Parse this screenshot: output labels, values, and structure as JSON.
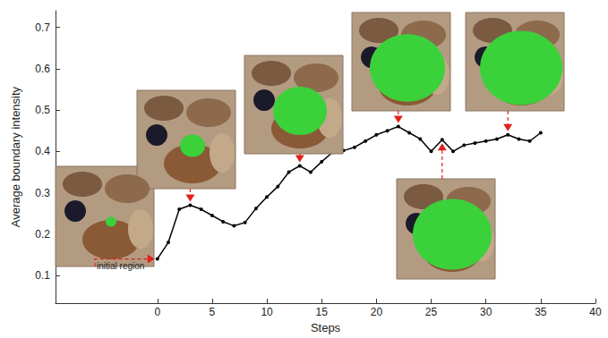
{
  "chart_data": {
    "type": "line",
    "x_label": "Steps",
    "y_label": "Average boundary intensity",
    "x": [
      0,
      1,
      2,
      3,
      4,
      5,
      6,
      7,
      8,
      9,
      10,
      11,
      12,
      13,
      14,
      15,
      16,
      17,
      18,
      19,
      20,
      21,
      22,
      23,
      24,
      25,
      26,
      27,
      28,
      29,
      30,
      31,
      32,
      33,
      34,
      35
    ],
    "values": [
      0.14,
      0.18,
      0.26,
      0.27,
      0.26,
      0.245,
      0.23,
      0.22,
      0.228,
      0.262,
      0.29,
      0.315,
      0.35,
      0.365,
      0.35,
      0.375,
      0.398,
      0.402,
      0.41,
      0.425,
      0.44,
      0.45,
      0.46,
      0.445,
      0.43,
      0.4,
      0.428,
      0.4,
      0.415,
      0.42,
      0.425,
      0.43,
      0.44,
      0.43,
      0.425,
      0.445
    ],
    "color": "#000000",
    "marker": "circle",
    "xlim": [
      -9.3,
      40
    ],
    "xticks": [
      0,
      5,
      10,
      15,
      20,
      25,
      30,
      35,
      40
    ],
    "ylim": [
      0.033,
      0.74
    ],
    "yticks": [
      0.1,
      0.2,
      0.3,
      0.4,
      0.5,
      0.6,
      0.7
    ],
    "grid": false,
    "annotations": [
      {
        "text": "initial region",
        "x": 0
      }
    ],
    "image_steps": [
      0,
      3,
      13,
      22,
      26,
      32
    ]
  }
}
